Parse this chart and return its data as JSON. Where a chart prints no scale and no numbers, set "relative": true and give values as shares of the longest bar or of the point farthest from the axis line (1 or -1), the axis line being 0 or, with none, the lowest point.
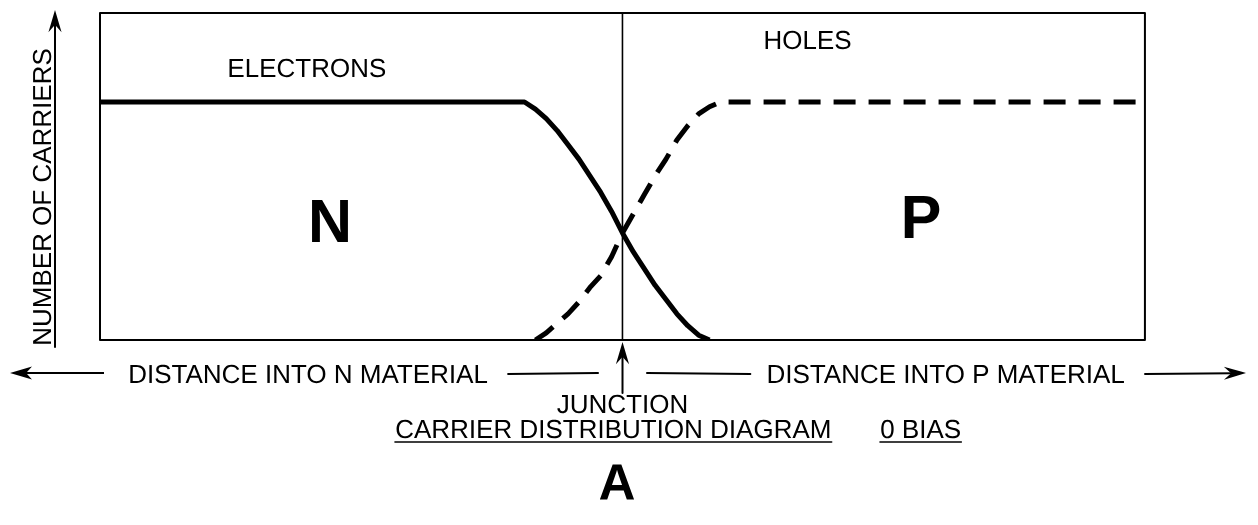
{
  "chart_data": {
    "type": "line",
    "title": "CARRIER DISTRIBUTION DIAGRAM",
    "subtitle": "0 BIAS",
    "ylabel": "NUMBER OF CARRIERS",
    "relative": true,
    "categories": [
      null,
      null,
      null,
      null,
      null,
      null,
      null,
      null,
      null,
      null,
      null,
      null,
      null,
      null,
      null,
      null,
      null,
      null,
      null,
      null,
      null,
      null,
      null,
      null,
      null,
      null,
      null,
      null,
      null,
      null,
      null,
      null,
      null,
      null,
      null,
      null,
      null,
      null,
      null,
      null,
      null,
      null,
      null,
      null,
      null,
      null,
      null,
      null,
      null,
      null,
      null,
      null,
      null,
      null,
      null,
      null,
      null,
      null,
      null,
      null,
      null,
      null,
      null,
      null,
      null,
      null,
      null,
      null,
      null,
      null,
      null,
      null,
      null,
      null,
      null,
      null,
      null,
      null,
      null,
      null,
      null,
      null,
      null,
      null,
      null,
      null,
      null,
      null,
      null,
      null,
      null,
      null,
      null,
      null,
      null,
      null,
      null
    ],
    "series": [
      {
        "name": "ELECTRONS",
        "color": "#000000",
        "line_style": "solid",
        "values": [
          1,
          1,
          1,
          1,
          1,
          1,
          1,
          1,
          1,
          1,
          1,
          1,
          1,
          1,
          1,
          1,
          1,
          1,
          1,
          1,
          1,
          1,
          1,
          1,
          1,
          1,
          1,
          1,
          1,
          1,
          1,
          1,
          1,
          1,
          1,
          1,
          1,
          1,
          1,
          1,
          0.97,
          0.93,
          0.88,
          0.82,
          0.76,
          0.69,
          0.62,
          0.54,
          0.45,
          0.37,
          0.3,
          0.23,
          0.17,
          0.11,
          0.06,
          0.02,
          0,
          null,
          null,
          null,
          null,
          null,
          null,
          null,
          null,
          null,
          null,
          null,
          null,
          null,
          null,
          null,
          null,
          null,
          null,
          null,
          null,
          null,
          null,
          null,
          null,
          null,
          null,
          null,
          null,
          null,
          null,
          null,
          null,
          null,
          null,
          null,
          null,
          null,
          null,
          null,
          null
        ]
      },
      {
        "name": "HOLES",
        "color": "#000000",
        "line_style": "dashed",
        "values": [
          null,
          null,
          null,
          null,
          null,
          null,
          null,
          null,
          null,
          null,
          null,
          null,
          null,
          null,
          null,
          null,
          null,
          null,
          null,
          null,
          null,
          null,
          null,
          null,
          null,
          null,
          null,
          null,
          null,
          null,
          null,
          null,
          null,
          null,
          null,
          null,
          null,
          null,
          null,
          null,
          0,
          0.03,
          0.07,
          0.11,
          0.16,
          0.22,
          0.27,
          0.35,
          0.45,
          0.53,
          0.61,
          0.69,
          0.76,
          0.84,
          0.9,
          0.95,
          0.98,
          1,
          1,
          1,
          1,
          1,
          1,
          1,
          1,
          1,
          1,
          1,
          1,
          1,
          1,
          1,
          1,
          1,
          1,
          1,
          1,
          1,
          1,
          1,
          1,
          1,
          1,
          1,
          1,
          1,
          1,
          1,
          1,
          1,
          1,
          1,
          1,
          1,
          1,
          1,
          1
        ]
      }
    ],
    "annotations": [
      "N",
      "P",
      "DISTANCE INTO N MATERIAL",
      "DISTANCE INTO P MATERIAL",
      "JUNCTION",
      "A"
    ]
  }
}
